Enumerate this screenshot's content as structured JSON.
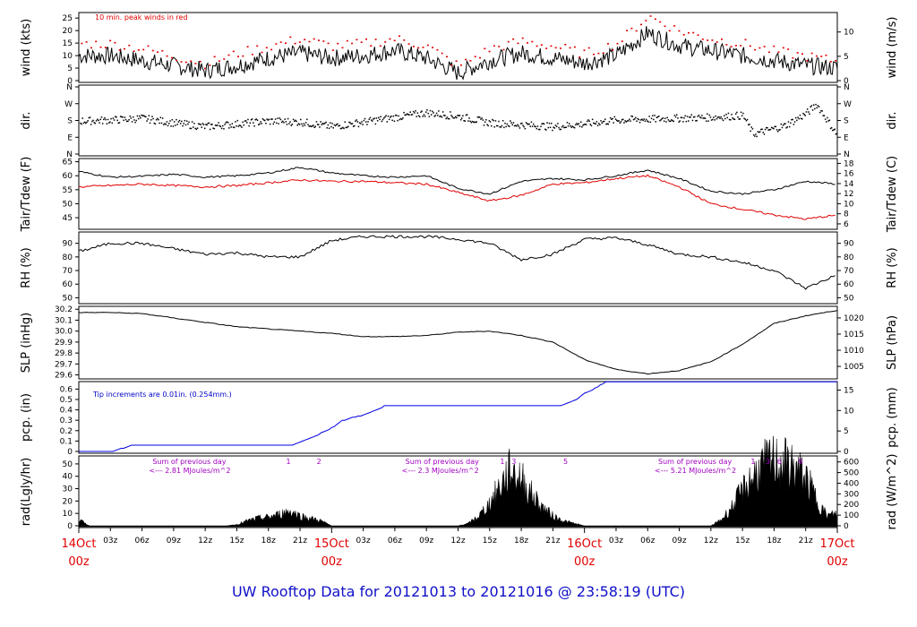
{
  "title": "UW Rooftop Data for 20121013  to  20121016 @ 23:58:19  (UTC)",
  "colors": {
    "wind_peak": "#e00000",
    "tdew": "#e00000",
    "pcp": "#0000e0",
    "annot_purple": "#a000c0",
    "day_label": "#e00000",
    "title": "#1010c8",
    "note_blue": "#0000c8"
  },
  "x_axis": {
    "range_hours": [
      0,
      72
    ],
    "hour_ticks": [
      "03z",
      "06z",
      "09z",
      "12z",
      "15z",
      "18z",
      "21z",
      "03z",
      "06z",
      "09z",
      "12z",
      "15z",
      "18z",
      "21z",
      "03z",
      "06z",
      "09z",
      "12z",
      "15z",
      "18z",
      "21z"
    ],
    "day_labels": [
      {
        "hour": 0,
        "date": "14Oct",
        "time": "00z"
      },
      {
        "hour": 24,
        "date": "15Oct",
        "time": "00z"
      },
      {
        "hour": 48,
        "date": "16Oct",
        "time": "00z"
      },
      {
        "hour": 72,
        "date": "17Oct",
        "time": "00z"
      }
    ]
  },
  "panels": {
    "wind": {
      "left_label": "wind (kts)",
      "right_label": "wind (m/s)",
      "left_ticks": [
        "0",
        "5",
        "10",
        "15",
        "20",
        "25"
      ],
      "right_ticks": [
        "0",
        "5",
        "10"
      ],
      "note": "10 min. peak winds in red"
    },
    "dir": {
      "left_label": "dir.",
      "right_label": "dir.",
      "ticks": [
        "N",
        "E",
        "S",
        "W",
        "N"
      ]
    },
    "temp": {
      "left_label": "Tair/Tdew (F)",
      "right_label": "Tair/Tdew (C)",
      "left_ticks": [
        "45",
        "50",
        "55",
        "60",
        "65"
      ],
      "right_ticks": [
        "6",
        "8",
        "10",
        "12",
        "14",
        "16",
        "18"
      ]
    },
    "rh": {
      "left_label": "RH (%)",
      "right_label": "RH (%)",
      "ticks": [
        "50",
        "60",
        "70",
        "80",
        "90"
      ]
    },
    "slp": {
      "left_label": "SLP (inHg)",
      "right_label": "SLP (hPa)",
      "left_ticks": [
        "29.6",
        "29.7",
        "29.8",
        "29.9",
        "30.0",
        "30.1",
        "30.2"
      ],
      "right_ticks": [
        "1005",
        "1010",
        "1015",
        "1020"
      ]
    },
    "pcp": {
      "left_label": "pcp. (in)",
      "right_label": "pcp. (mm)",
      "left_ticks": [
        "0",
        "0.1",
        "0.2",
        "0.3",
        "0.4",
        "0.5",
        "0.6"
      ],
      "right_ticks": [
        "0",
        "5",
        "10",
        "15"
      ],
      "note": "Tip increments are 0.01in. (0.254mm.)"
    },
    "rad": {
      "left_label": "rad(Lgly/hr)",
      "right_label": "rad (W/m^2)",
      "left_ticks": [
        "0",
        "10",
        "20",
        "30",
        "40",
        "50"
      ],
      "right_ticks": [
        "0",
        "100",
        "200",
        "300",
        "400",
        "500",
        "600"
      ],
      "daily_sums": [
        {
          "hour": 7,
          "line1": "Sum of previous day",
          "line2": "<--- 2.81 MJoules/m^2"
        },
        {
          "hour": 31,
          "line1": "Sum of previous day",
          "line2": "<--- 2.3 MJoules/m^2"
        },
        {
          "hour": 55,
          "line1": "Sum of previous day",
          "line2": "<--- 5.21 MJoules/m^2"
        }
      ],
      "marks": [
        {
          "hour": 19.9,
          "text": "1"
        },
        {
          "hour": 22.8,
          "text": "2"
        },
        {
          "hour": 40.2,
          "text": "1"
        },
        {
          "hour": 41.3,
          "text": "3"
        },
        {
          "hour": 46.2,
          "text": "5"
        },
        {
          "hour": 64.0,
          "text": "1"
        },
        {
          "hour": 65.4,
          "text": "3"
        },
        {
          "hour": 66.5,
          "text": "6"
        },
        {
          "hour": 68.5,
          "text": "9"
        }
      ]
    }
  },
  "chart_data": {
    "type": "line",
    "x_unit": "hours since 14Oct 00z",
    "series": [
      {
        "name": "wind",
        "x": [
          0,
          3,
          6,
          9,
          12,
          15,
          18,
          21,
          24,
          27,
          30,
          33,
          36,
          39,
          42,
          45,
          48,
          51,
          54,
          57,
          60,
          63,
          66,
          69,
          72
        ],
        "values": [
          10,
          10,
          8,
          6,
          4,
          6,
          9,
          11,
          9,
          10,
          12,
          9,
          3,
          8,
          11,
          9,
          7,
          10,
          19,
          14,
          12,
          10,
          8,
          6,
          5
        ]
      },
      {
        "name": "10 min. peak winds",
        "x": [
          0,
          3,
          6,
          9,
          12,
          15,
          18,
          21,
          24,
          27,
          30,
          33,
          36,
          39,
          42,
          45,
          48,
          51,
          54,
          57,
          60,
          63,
          66,
          69,
          72
        ],
        "values": [
          15,
          15,
          13,
          10,
          7,
          11,
          14,
          17,
          14,
          15,
          17,
          14,
          6,
          13,
          16,
          14,
          11,
          15,
          26,
          20,
          17,
          15,
          12,
          10,
          8
        ]
      },
      {
        "name": "dir.",
        "x": [
          0,
          3,
          6,
          9,
          12,
          15,
          18,
          21,
          24,
          27,
          30,
          33,
          36,
          39,
          42,
          45,
          48,
          51,
          54,
          57,
          60,
          63,
          64,
          66,
          67,
          69,
          70,
          72
        ],
        "values": [
          180,
          185,
          195,
          170,
          150,
          165,
          180,
          175,
          150,
          175,
          200,
          225,
          205,
          170,
          160,
          150,
          165,
          185,
          190,
          195,
          200,
          210,
          110,
          140,
          155,
          220,
          270,
          100
        ]
      },
      {
        "name": "Tair",
        "x": [
          0,
          3,
          6,
          9,
          12,
          15,
          18,
          21,
          24,
          27,
          30,
          33,
          36,
          39,
          42,
          45,
          48,
          51,
          54,
          57,
          60,
          63,
          66,
          69,
          72
        ],
        "values": [
          61.5,
          59.5,
          59.8,
          60.5,
          59.5,
          60,
          61,
          63,
          61,
          60,
          59.5,
          60,
          55.5,
          53.5,
          58,
          59,
          58.5,
          60,
          62,
          59,
          54.5,
          53.5,
          55,
          58,
          57
        ]
      },
      {
        "name": "Tdew",
        "x": [
          0,
          3,
          6,
          9,
          12,
          15,
          18,
          21,
          24,
          27,
          30,
          33,
          36,
          39,
          42,
          45,
          48,
          51,
          54,
          57,
          60,
          63,
          66,
          69,
          72
        ],
        "values": [
          56,
          56.5,
          57,
          56.5,
          56,
          56.5,
          57.5,
          58.5,
          58,
          58,
          57.5,
          57,
          54,
          51,
          53,
          57,
          57.5,
          59,
          60,
          56,
          50,
          48,
          46,
          44.5,
          46
        ]
      },
      {
        "name": "RH",
        "x": [
          0,
          3,
          6,
          9,
          12,
          15,
          18,
          21,
          24,
          27,
          30,
          33,
          36,
          39,
          42,
          45,
          48,
          51,
          54,
          57,
          60,
          63,
          66,
          69,
          72
        ],
        "values": [
          84,
          90,
          90,
          86,
          82,
          83,
          80,
          80,
          92,
          95,
          95,
          95,
          93,
          90,
          78,
          82,
          93,
          94,
          89,
          82,
          80,
          76,
          70,
          57,
          67
        ]
      },
      {
        "name": "SLP",
        "x": [
          0,
          3,
          6,
          9,
          12,
          15,
          18,
          21,
          24,
          27,
          30,
          33,
          36,
          39,
          42,
          45,
          48,
          51,
          54,
          57,
          60,
          63,
          66,
          69,
          72
        ],
        "values": [
          30.17,
          30.17,
          30.16,
          30.12,
          30.08,
          30.04,
          30.02,
          30.0,
          29.98,
          29.95,
          29.95,
          29.96,
          29.99,
          30.0,
          29.96,
          29.9,
          29.74,
          29.65,
          29.61,
          29.64,
          29.72,
          29.88,
          30.07,
          30.14,
          30.19
        ]
      },
      {
        "name": "pcp.",
        "x": [
          0,
          3,
          4,
          5,
          20,
          21,
          23,
          24,
          25,
          26,
          27,
          29,
          36,
          40,
          42,
          44,
          45,
          46,
          47,
          48,
          49,
          50,
          52,
          72
        ],
        "values": [
          0,
          0,
          0.03,
          0.06,
          0.06,
          0.09,
          0.18,
          0.23,
          0.3,
          0.33,
          0.35,
          0.44,
          0.44,
          0.44,
          0.44,
          0.44,
          0.44,
          0.45,
          0.49,
          0.56,
          0.61,
          0.67,
          0.67,
          0.67
        ]
      },
      {
        "name": "rad",
        "x": [
          0,
          1,
          2,
          12,
          14,
          15,
          16,
          17,
          18,
          19,
          20,
          21,
          22,
          23,
          24,
          25,
          36,
          37,
          38,
          39,
          40,
          41,
          42,
          43,
          44,
          45,
          46,
          47,
          48,
          60,
          61,
          62,
          63,
          64,
          65,
          66,
          67,
          68,
          69,
          70,
          71,
          72
        ],
        "values": [
          5,
          0,
          0,
          0,
          0,
          1,
          4,
          6,
          7,
          9,
          12,
          8,
          6,
          4,
          0,
          0,
          0,
          2,
          8,
          18,
          32,
          45,
          38,
          25,
          15,
          8,
          4,
          2,
          0,
          0,
          5,
          15,
          28,
          40,
          48,
          52,
          50,
          46,
          38,
          22,
          8,
          10
        ]
      }
    ]
  }
}
